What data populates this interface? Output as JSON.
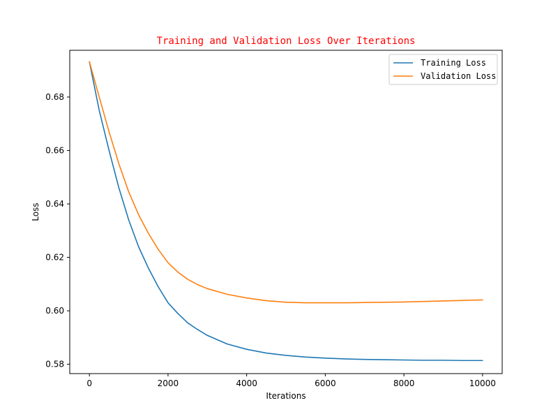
{
  "chart_data": {
    "type": "line",
    "title": "Training and Validation Loss Over Iterations",
    "title_color": "#ff0000",
    "xlabel": "Iterations",
    "ylabel": "Loss",
    "xlim": [
      -500,
      10500
    ],
    "ylim": [
      0.5765,
      0.6975
    ],
    "xticks": [
      0,
      2000,
      4000,
      6000,
      8000,
      10000
    ],
    "xtick_labels": [
      "0",
      "2000",
      "4000",
      "6000",
      "8000",
      "10000"
    ],
    "yticks": [
      0.58,
      0.6,
      0.62,
      0.64,
      0.66,
      0.68
    ],
    "ytick_labels": [
      "0.58",
      "0.60",
      "0.62",
      "0.64",
      "0.66",
      "0.68"
    ],
    "grid": false,
    "legend_position": "top-right",
    "series": [
      {
        "name": "Training Loss",
        "color": "#1f77b4",
        "x": [
          0,
          250,
          500,
          750,
          1000,
          1250,
          1500,
          1750,
          2000,
          2250,
          2500,
          2750,
          3000,
          3500,
          4000,
          4500,
          5000,
          5500,
          6000,
          6500,
          7000,
          7500,
          8000,
          8500,
          9000,
          9500,
          10000
        ],
        "y": [
          0.6932,
          0.675,
          0.66,
          0.646,
          0.634,
          0.624,
          0.616,
          0.609,
          0.603,
          0.599,
          0.5955,
          0.593,
          0.5908,
          0.5876,
          0.5856,
          0.5842,
          0.5833,
          0.5827,
          0.5823,
          0.582,
          0.5818,
          0.5817,
          0.5816,
          0.5815,
          0.5815,
          0.5814,
          0.5814
        ]
      },
      {
        "name": "Validation Loss",
        "color": "#ff7f0e",
        "x": [
          0,
          250,
          500,
          750,
          1000,
          1250,
          1500,
          1750,
          2000,
          2250,
          2500,
          2750,
          3000,
          3500,
          4000,
          4500,
          5000,
          5500,
          6000,
          6500,
          7000,
          7500,
          8000,
          8500,
          9000,
          9500,
          10000
        ],
        "y": [
          0.6932,
          0.68,
          0.667,
          0.655,
          0.6445,
          0.636,
          0.629,
          0.623,
          0.618,
          0.6145,
          0.6118,
          0.6098,
          0.6083,
          0.6062,
          0.6048,
          0.6038,
          0.6032,
          0.603,
          0.603,
          0.603,
          0.6031,
          0.6032,
          0.6033,
          0.6035,
          0.6037,
          0.6039,
          0.6041
        ]
      }
    ]
  }
}
